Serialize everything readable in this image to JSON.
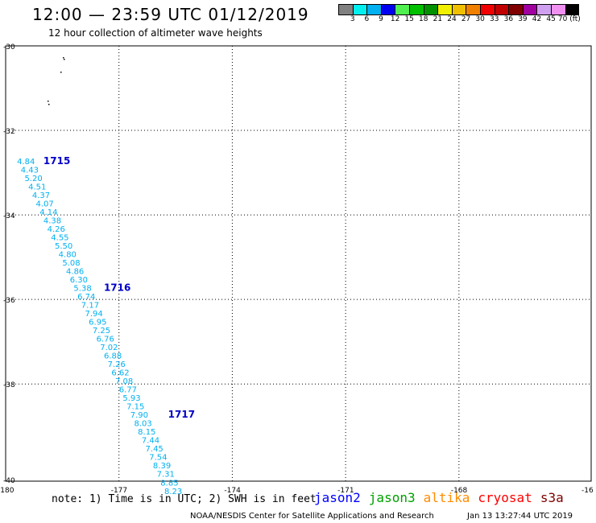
{
  "header": {
    "title": "12:00 — 23:59 UTC 01/12/2019",
    "subtitle": "12 hour collection of altimeter wave heights"
  },
  "scale": {
    "colors": [
      "#808080",
      "#00f0f0",
      "#00b0f0",
      "#0000f0",
      "#50f050",
      "#00c000",
      "#009000",
      "#f0f000",
      "#f0c000",
      "#f08000",
      "#f00000",
      "#c00000",
      "#800000",
      "#a000a0",
      "#d0a0f0",
      "#f090f0",
      "#000000"
    ],
    "labels": [
      "3",
      "6",
      "9",
      "12",
      "15",
      "18",
      "21",
      "24",
      "27",
      "30",
      "33",
      "36",
      "39",
      "42",
      "45",
      "70 (ft)"
    ]
  },
  "map": {
    "lat_ticks": [
      "-30",
      "-32",
      "-34",
      "-36",
      "-38",
      "-40"
    ],
    "lon_ticks": [
      "-180",
      "-177",
      "-174",
      "-171",
      "-168",
      "-16"
    ]
  },
  "track": {
    "color": "#00b0f0",
    "label_color": "#0000c8",
    "points": [
      {
        "lon": -179.7,
        "lat": -32.8,
        "v": "4.84"
      },
      {
        "lon": -179.6,
        "lat": -33.0,
        "v": "4.43"
      },
      {
        "lon": -179.5,
        "lat": -33.2,
        "v": "5.20"
      },
      {
        "lon": -179.4,
        "lat": -33.4,
        "v": "4.51"
      },
      {
        "lon": -179.3,
        "lat": -33.6,
        "v": "4.37"
      },
      {
        "lon": -179.2,
        "lat": -33.8,
        "v": "4.07"
      },
      {
        "lon": -179.1,
        "lat": -34.0,
        "v": "4.14"
      },
      {
        "lon": -179.0,
        "lat": -34.2,
        "v": "4.38"
      },
      {
        "lon": -178.9,
        "lat": -34.4,
        "v": "4.26"
      },
      {
        "lon": -178.8,
        "lat": -34.6,
        "v": "4.55"
      },
      {
        "lon": -178.7,
        "lat": -34.8,
        "v": "5.50"
      },
      {
        "lon": -178.6,
        "lat": -35.0,
        "v": "4.80"
      },
      {
        "lon": -178.5,
        "lat": -35.2,
        "v": "5.08"
      },
      {
        "lon": -178.4,
        "lat": -35.4,
        "v": "4.86"
      },
      {
        "lon": -178.3,
        "lat": -35.6,
        "v": "6.30"
      },
      {
        "lon": -178.2,
        "lat": -35.8,
        "v": "5.38"
      },
      {
        "lon": -178.1,
        "lat": -36.0,
        "v": "6.74"
      },
      {
        "lon": -178.0,
        "lat": -36.2,
        "v": "7.17"
      },
      {
        "lon": -177.9,
        "lat": -36.4,
        "v": "7.94"
      },
      {
        "lon": -177.8,
        "lat": -36.6,
        "v": "6.95"
      },
      {
        "lon": -177.7,
        "lat": -36.8,
        "v": "7.25"
      },
      {
        "lon": -177.6,
        "lat": -37.0,
        "v": "6.76"
      },
      {
        "lon": -177.5,
        "lat": -37.2,
        "v": "7.02"
      },
      {
        "lon": -177.4,
        "lat": -37.4,
        "v": "6.88"
      },
      {
        "lon": -177.3,
        "lat": -37.6,
        "v": "7.26"
      },
      {
        "lon": -177.2,
        "lat": -37.8,
        "v": "6.62"
      },
      {
        "lon": -177.1,
        "lat": -38.0,
        "v": "7.08"
      },
      {
        "lon": -177.0,
        "lat": -38.2,
        "v": "6.77"
      },
      {
        "lon": -176.9,
        "lat": -38.4,
        "v": "5.93"
      },
      {
        "lon": -176.8,
        "lat": -38.6,
        "v": "7.15"
      },
      {
        "lon": -176.7,
        "lat": -38.8,
        "v": "7.90"
      },
      {
        "lon": -176.6,
        "lat": -39.0,
        "v": "8.03"
      },
      {
        "lon": -176.5,
        "lat": -39.2,
        "v": "8.15"
      },
      {
        "lon": -176.4,
        "lat": -39.4,
        "v": "7.44"
      },
      {
        "lon": -176.3,
        "lat": -39.6,
        "v": "7.45"
      },
      {
        "lon": -176.2,
        "lat": -39.8,
        "v": "7.54"
      },
      {
        "lon": -176.1,
        "lat": -40.0,
        "v": "8.39"
      },
      {
        "lon": -176.0,
        "lat": -40.2,
        "v": "7.31"
      },
      {
        "lon": -175.9,
        "lat": -40.4,
        "v": "8.85"
      },
      {
        "lon": -175.8,
        "lat": -40.6,
        "v": "8.23"
      }
    ],
    "time_labels": [
      {
        "text": "1715",
        "lon": -179.0,
        "lat": -32.8
      },
      {
        "text": "1716",
        "lon": -177.4,
        "lat": -35.8
      },
      {
        "text": "1717",
        "lon": -175.7,
        "lat": -38.8
      }
    ]
  },
  "footer": {
    "note": "note: 1) Time is in UTC; 2) SWH is in feet",
    "satellites": [
      {
        "name": "jason2",
        "color": "#0000ff"
      },
      {
        "name": "jason3",
        "color": "#00a000"
      },
      {
        "name": "altika",
        "color": "#ff8c00"
      },
      {
        "name": "cryosat",
        "color": "#ff0000"
      },
      {
        "name": "s3a",
        "color": "#800000"
      }
    ],
    "credit": "NOAA/NESDIS Center for Satellite Applications and Research",
    "timestamp": "Jan 13 13:27:44 UTC 2019"
  }
}
